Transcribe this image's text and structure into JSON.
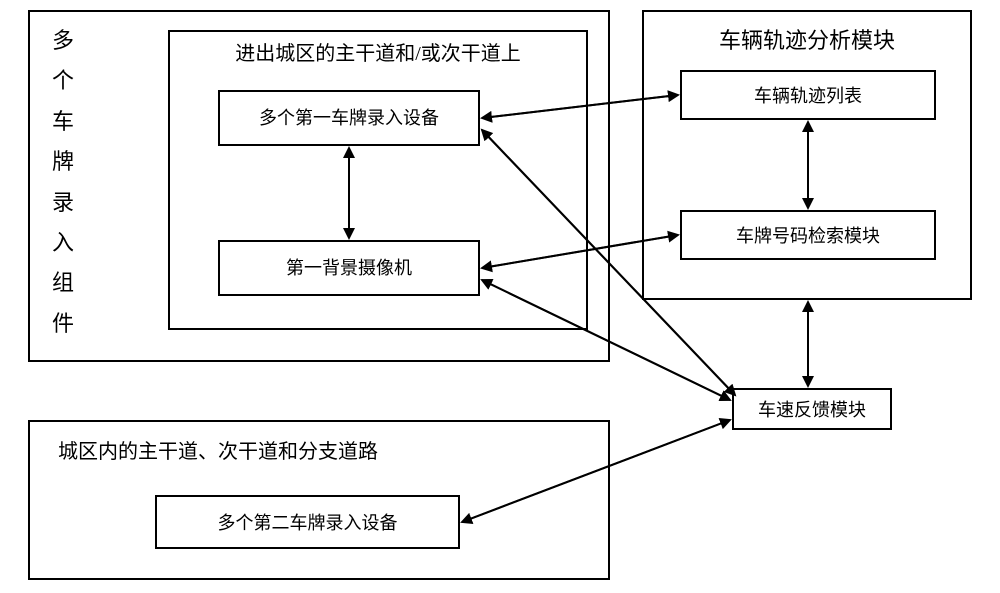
{
  "type": "flowchart",
  "background_color": "#ffffff",
  "border_color": "#000000",
  "text_color": "#000000",
  "font_family": "SimSun",
  "left_group": {
    "title_vertical": "多个车牌录入组件",
    "title_fontsize": 22,
    "inner_group": {
      "title": "进出城区的主干道和/或次干道上",
      "title_fontsize": 20,
      "box1": {
        "text": "多个第一车牌录入设备",
        "fontsize": 18
      },
      "box2": {
        "text": "第一背景摄像机",
        "fontsize": 18
      }
    }
  },
  "right_module": {
    "title": "车辆轨迹分析模块",
    "title_fontsize": 22,
    "box1": {
      "text": "车辆轨迹列表",
      "fontsize": 18
    },
    "box2": {
      "text": "车牌号码检索模块",
      "fontsize": 18
    }
  },
  "speed_box": {
    "text": "车速反馈模块",
    "fontsize": 18
  },
  "bottom_group": {
    "title": "城区内的主干道、次干道和分支道路",
    "title_fontsize": 20,
    "box1": {
      "text": "多个第二车牌录入设备",
      "fontsize": 18
    }
  },
  "arrow_style": {
    "stroke": "#000000",
    "stroke_width": 2,
    "head_size": 12
  }
}
